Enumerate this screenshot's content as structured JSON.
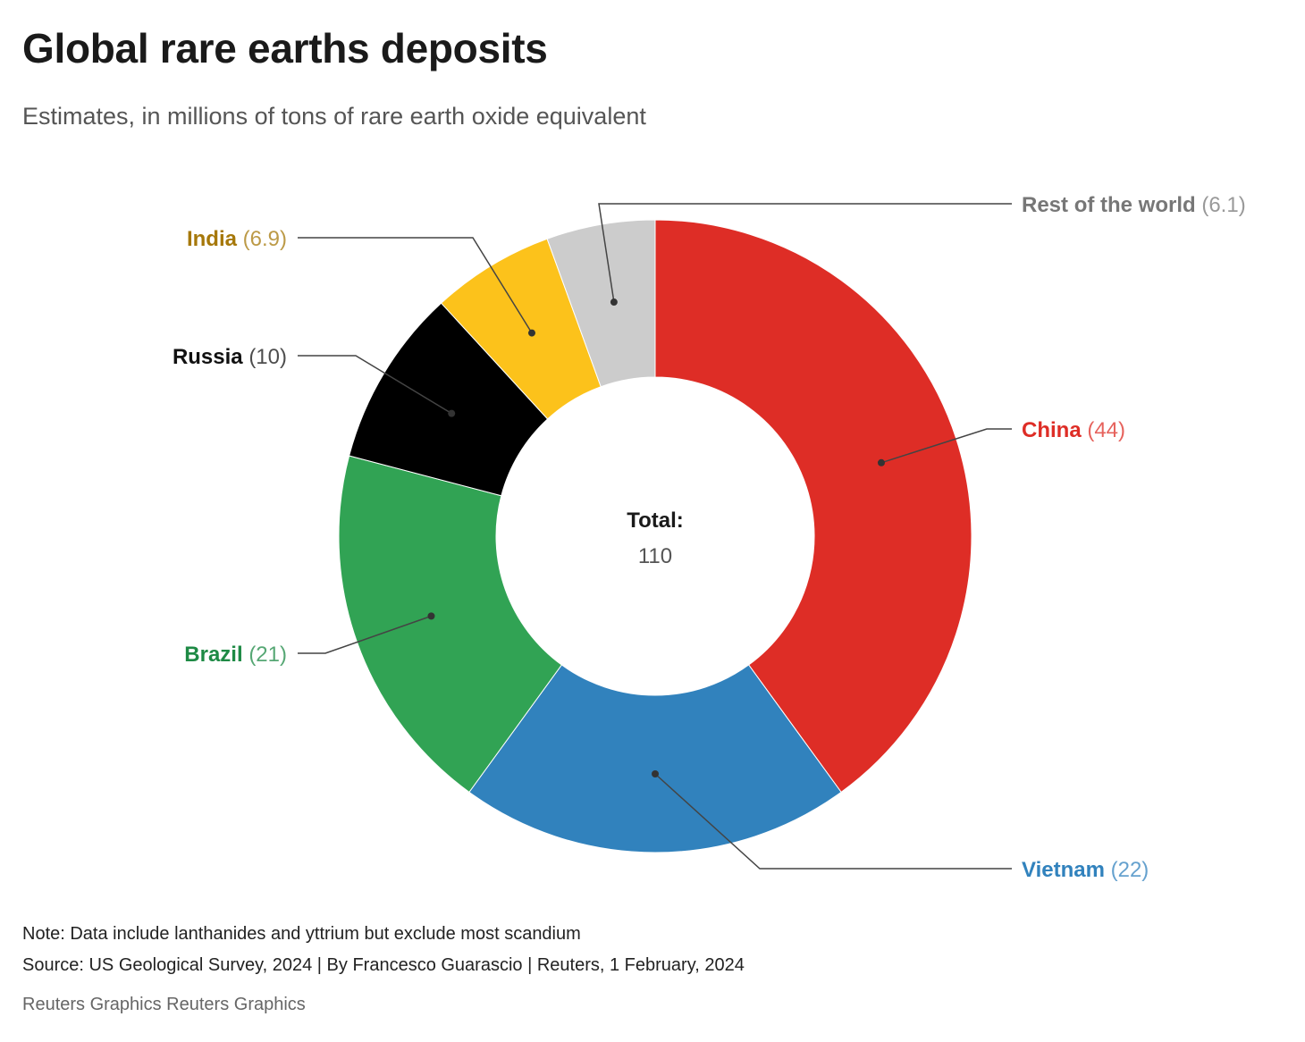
{
  "chart_data": {
    "type": "pie",
    "title": "Global rare earths deposits",
    "subtitle": "Estimates, in millions of tons of rare earth oxide equivalent",
    "center_label": "Total:",
    "center_value": "110",
    "slices": [
      {
        "name": "China",
        "value": 44,
        "value_label": "(44)",
        "color": "#de2d26",
        "label_color": "#de2d26"
      },
      {
        "name": "Vietnam",
        "value": 22,
        "value_label": "(22)",
        "color": "#3182bd",
        "label_color": "#3182bd"
      },
      {
        "name": "Brazil",
        "value": 21,
        "value_label": "(21)",
        "color": "#31a354",
        "label_color": "#1e8a45"
      },
      {
        "name": "Russia",
        "value": 10,
        "value_label": "(10)",
        "color": "#000000",
        "label_color": "#111111"
      },
      {
        "name": "India",
        "value": 6.9,
        "value_label": "(6.9)",
        "color": "#fcc21b",
        "label_color": "#a6780a"
      },
      {
        "name": "Rest of the world",
        "value": 6.1,
        "value_label": "(6.1)",
        "color": "#cccccc",
        "label_color": "#777777"
      }
    ]
  },
  "footer": {
    "note": "Note: Data include lanthanides and yttrium but exclude most scandium",
    "source": "Source: US Geological Survey, 2024 | By Francesco Guarascio | Reuters, 1 February, 2024",
    "credit": "Reuters Graphics Reuters Graphics"
  }
}
